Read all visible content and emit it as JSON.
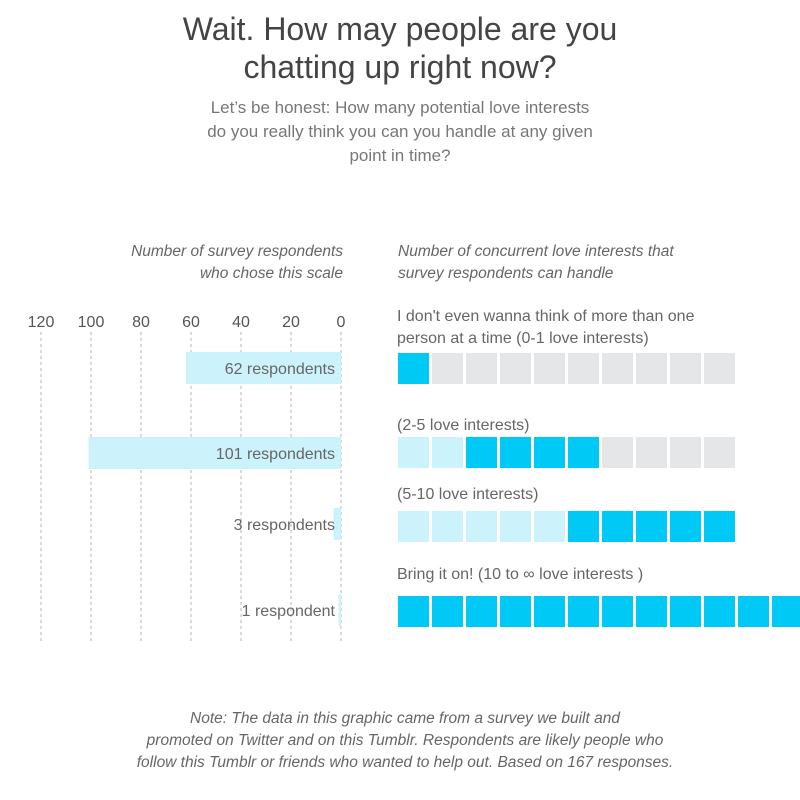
{
  "title_lines": [
    "Wait. How may people are you",
    "chatting up right now?"
  ],
  "subtitle_lines": [
    "Let’s be honest: How many potential love interests",
    "do you really think you can you handle at any given",
    "point in time?"
  ],
  "left_axis_title": [
    "Number of survey respondents",
    "who chose this scale"
  ],
  "right_axis_title": [
    "Number of concurrent love interests that",
    "survey respondents can handle"
  ],
  "note_lines": [
    "Note: The data in this graphic came from a survey we built and",
    "promoted on Twitter and on this Tumblr. Respondents are likely people who",
    "follow this Tumblr or friends who wanted to help out. Based on 167 responses."
  ],
  "colors": {
    "bar": "#ccf3fc",
    "square_full": "#00c9f5",
    "square_light": "#ccf3fc",
    "square_empty": "#e5e6e8"
  },
  "chart_data": [
    {
      "type": "bar",
      "orientation": "horizontal",
      "direction": "right-to-left",
      "categories": [
        "I don't even wanna think of more than one person at a time (0-1 love interests)",
        "(2-5 love interests)",
        "(5-10  love interests)",
        "Bring it on! (10 to ∞ love interests )"
      ],
      "values": [
        62,
        101,
        3,
        1
      ],
      "value_labels": [
        "62 respondents",
        "101 respondents",
        "3 respondents",
        "1 respondent"
      ],
      "xlim": [
        0,
        120
      ],
      "ticks": [
        "120",
        "100",
        "80",
        "60",
        "40",
        "20",
        "0"
      ],
      "tick_values": [
        120,
        100,
        80,
        60,
        40,
        20,
        0
      ],
      "grid": true
    },
    {
      "type": "pictogram",
      "rows": [
        {
          "label_lines": [
            "I don't even wanna think of more than one",
            "person at a time (0-1 love interests)"
          ],
          "full": 1,
          "light": 0,
          "empty": 9
        },
        {
          "label_lines": [
            "(2-5 love interests)"
          ],
          "full": 4,
          "light": 2,
          "empty": 4
        },
        {
          "label_lines": [
            "(5-10  love interests)"
          ],
          "full": 5,
          "light": 5,
          "empty": 0
        },
        {
          "label_lines": [
            "Bring it on! (10 to ∞ love interests )"
          ],
          "full": 12,
          "light": 0,
          "empty": 0
        }
      ]
    }
  ]
}
